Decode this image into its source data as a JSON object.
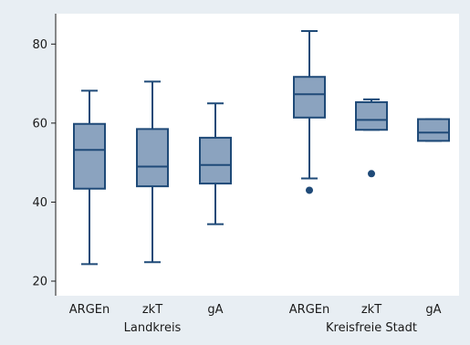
{
  "chart_data": {
    "type": "box",
    "title": "",
    "xlabel": "",
    "ylabel": "",
    "ylim": [
      17,
      87
    ],
    "yticks": [
      20,
      40,
      60,
      80
    ],
    "grid": false,
    "colors": {
      "background": "#e8eef3",
      "plot_area": "#ffffff",
      "box_fill": "#8ba3bf",
      "box_stroke": "#1f4a78",
      "outlier": "#1f4a78"
    },
    "groups": [
      {
        "label": "Landkreis",
        "categories": [
          "ARGEn",
          "zkT",
          "gA"
        ]
      },
      {
        "label": "Kreisfreie Stadt",
        "categories": [
          "ARGEn",
          "zkT",
          "gA"
        ]
      }
    ],
    "boxes": [
      {
        "group": "Landkreis",
        "category": "ARGEn",
        "whisker_low": 24.3,
        "q1": 43.4,
        "median": 53.2,
        "q3": 59.8,
        "whisker_high": 68.2,
        "outliers": []
      },
      {
        "group": "Landkreis",
        "category": "zkT",
        "whisker_low": 24.8,
        "q1": 44.0,
        "median": 49.0,
        "q3": 58.5,
        "whisker_high": 70.5,
        "outliers": []
      },
      {
        "group": "Landkreis",
        "category": "gA",
        "whisker_low": 34.4,
        "q1": 44.7,
        "median": 49.4,
        "q3": 56.3,
        "whisker_high": 65.0,
        "outliers": []
      },
      {
        "group": "Kreisfreie Stadt",
        "category": "ARGEn",
        "whisker_low": 46.0,
        "q1": 61.4,
        "median": 67.3,
        "q3": 71.7,
        "whisker_high": 83.3,
        "outliers": [
          43.0
        ]
      },
      {
        "group": "Kreisfreie Stadt",
        "category": "zkT",
        "whisker_low": 58.3,
        "q1": 58.3,
        "median": 60.8,
        "q3": 65.3,
        "whisker_high": 66.0,
        "outliers": [
          47.2
        ]
      },
      {
        "group": "Kreisfreie Stadt",
        "category": "gA",
        "whisker_low": 55.5,
        "q1": 55.5,
        "median": 57.6,
        "q3": 61.0,
        "whisker_high": 61.0,
        "outliers": []
      }
    ]
  }
}
